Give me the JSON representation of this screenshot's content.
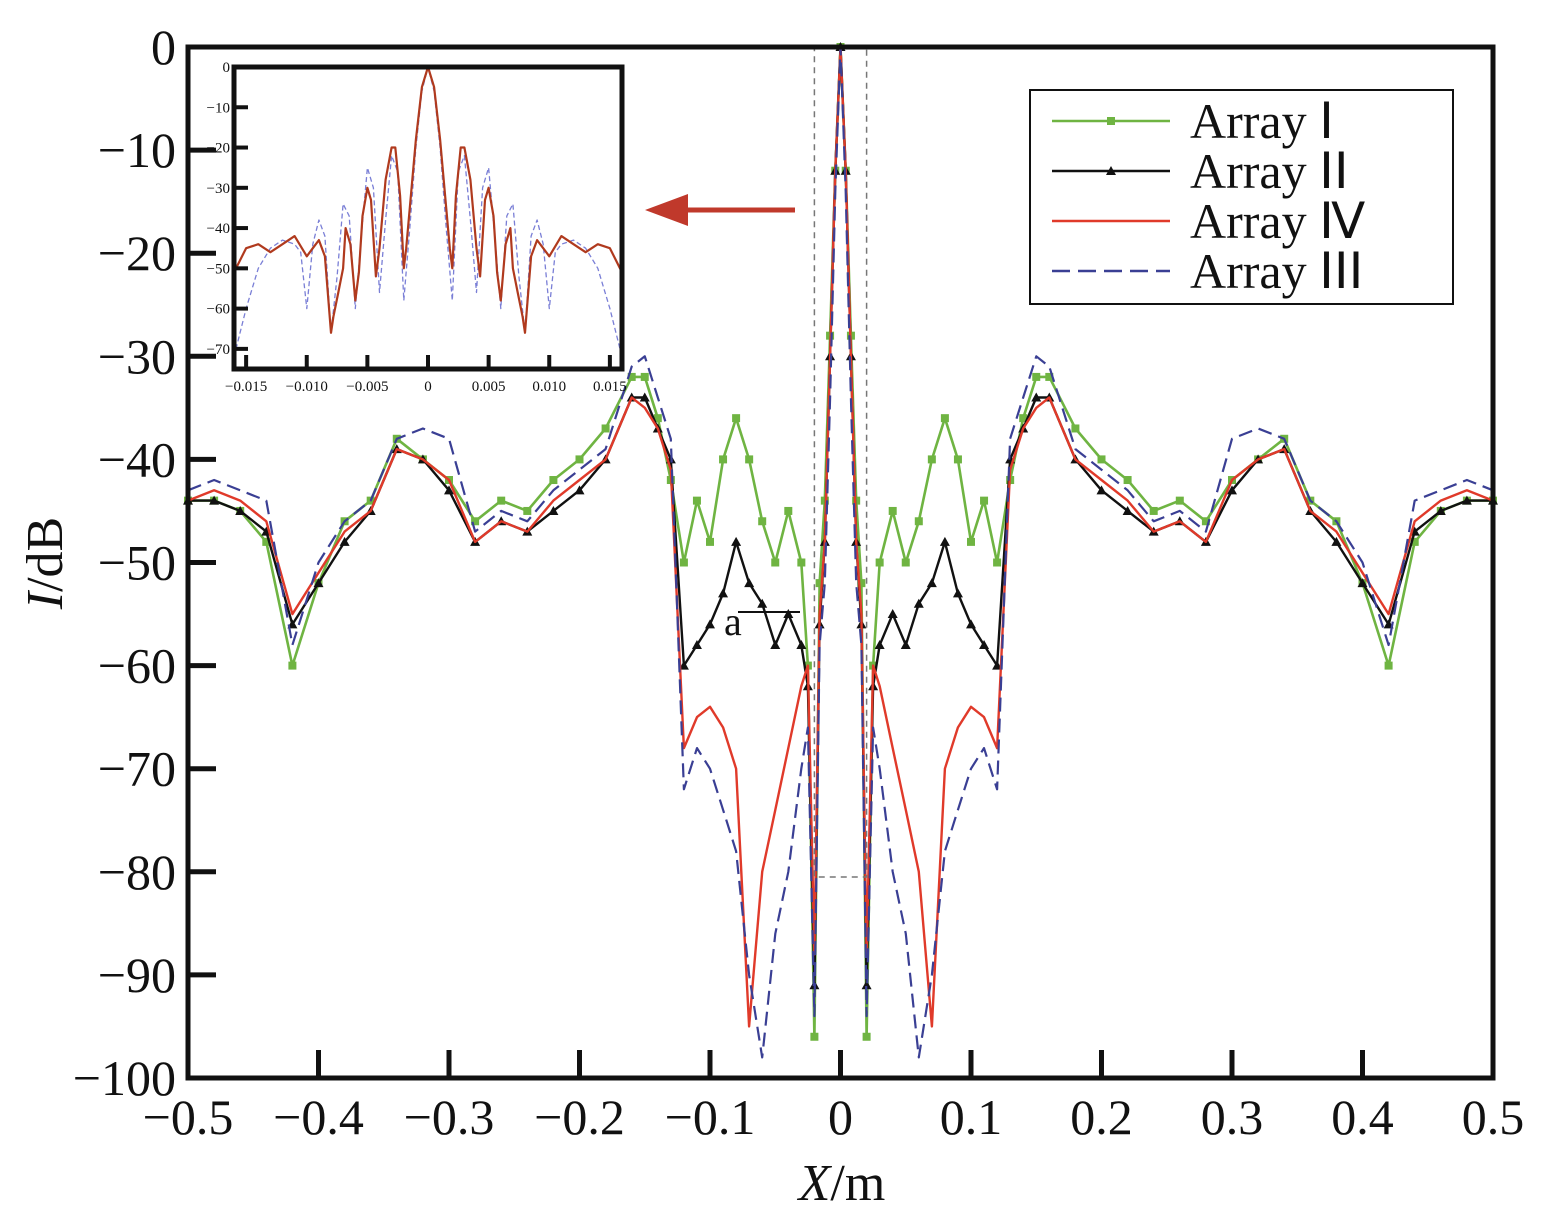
{
  "chart_data": [
    {
      "type": "line",
      "xlabel_italic": "X",
      "xlabel_unit": "/m",
      "ylabel_italic": "I",
      "ylabel_unit": "/dB",
      "xlim": [
        -0.5,
        0.5
      ],
      "ylim": [
        -100,
        0
      ],
      "xticks": [
        -0.5,
        -0.4,
        -0.3,
        -0.2,
        -0.1,
        0,
        0.1,
        0.2,
        0.3,
        0.4,
        0.5
      ],
      "xtick_labels": [
        "−0.5",
        "−0.4",
        "−0.3",
        "−0.2",
        "−0.1",
        "0",
        "0.1",
        "0.2",
        "0.3",
        "0.4",
        "0.5"
      ],
      "yticks": [
        0,
        -10,
        -20,
        -30,
        -40,
        -50,
        -60,
        -70,
        -80,
        -90,
        -100
      ],
      "ytick_labels": [
        "0",
        "−10",
        "−20",
        "−30",
        "−40",
        "−50",
        "−60",
        "−70",
        "−80",
        "−90",
        "−100"
      ],
      "legend_position": "top-right",
      "grid": false,
      "annotation": "a",
      "zoom_box": {
        "x": [
          -0.02,
          0.02
        ],
        "y": [
          -80.5,
          0
        ]
      },
      "series": [
        {
          "name": "Array Ⅰ",
          "color": "#6fb442",
          "style": "solid-square-markers",
          "x": [
            0,
            0.004,
            0.008,
            0.012,
            0.016,
            0.02,
            0.025,
            0.03,
            0.04,
            0.05,
            0.06,
            0.07,
            0.08,
            0.09,
            0.1,
            0.11,
            0.12,
            0.13,
            0.14,
            0.15,
            0.16,
            0.18,
            0.2,
            0.22,
            0.24,
            0.26,
            0.28,
            0.3,
            0.32,
            0.34,
            0.36,
            0.38,
            0.4,
            0.42,
            0.44,
            0.46,
            0.48,
            0.5
          ],
          "y": [
            0,
            -12,
            -28,
            -44,
            -52,
            -96,
            -60,
            -50,
            -45,
            -50,
            -46,
            -40,
            -36,
            -40,
            -48,
            -44,
            -50,
            -42,
            -36,
            -32,
            -32,
            -37,
            -40,
            -42,
            -45,
            -44,
            -46,
            -42,
            -40,
            -38,
            -44,
            -46,
            -52,
            -60,
            -48,
            -45,
            -44,
            -44
          ]
        },
        {
          "name": "Array ⅠⅠ",
          "color": "#111111",
          "style": "solid-triangle-markers",
          "x": [
            0,
            0.004,
            0.008,
            0.012,
            0.016,
            0.02,
            0.025,
            0.03,
            0.04,
            0.05,
            0.06,
            0.07,
            0.08,
            0.09,
            0.1,
            0.11,
            0.12,
            0.13,
            0.14,
            0.15,
            0.16,
            0.18,
            0.2,
            0.22,
            0.24,
            0.26,
            0.28,
            0.3,
            0.32,
            0.34,
            0.36,
            0.38,
            0.4,
            0.42,
            0.44,
            0.46,
            0.48,
            0.5
          ],
          "y": [
            0,
            -12,
            -30,
            -48,
            -56,
            -91,
            -62,
            -58,
            -55,
            -58,
            -54,
            -52,
            -48,
            -53,
            -56,
            -58,
            -60,
            -40,
            -37,
            -34,
            -34,
            -40,
            -43,
            -45,
            -47,
            -46,
            -48,
            -43,
            -40,
            -39,
            -45,
            -48,
            -52,
            -56,
            -47,
            -45,
            -44,
            -44
          ]
        },
        {
          "name": "Array Ⅳ",
          "color": "#e03a2a",
          "style": "solid",
          "x": [
            0,
            0.004,
            0.008,
            0.012,
            0.016,
            0.02,
            0.025,
            0.03,
            0.04,
            0.05,
            0.06,
            0.07,
            0.08,
            0.09,
            0.1,
            0.11,
            0.12,
            0.13,
            0.14,
            0.15,
            0.16,
            0.18,
            0.2,
            0.22,
            0.24,
            0.26,
            0.28,
            0.3,
            0.32,
            0.34,
            0.36,
            0.38,
            0.4,
            0.42,
            0.44,
            0.46,
            0.48,
            0.5
          ],
          "y": [
            0,
            -12,
            -30,
            -48,
            -55,
            -88,
            -60,
            -62,
            -68,
            -74,
            -80,
            -95,
            -70,
            -66,
            -64,
            -65,
            -68,
            -41,
            -37,
            -35,
            -34,
            -40,
            -42,
            -44,
            -47,
            -46,
            -48,
            -42,
            -40,
            -39,
            -45,
            -47,
            -51,
            -55,
            -46,
            -44,
            -43,
            -44
          ]
        },
        {
          "name": "Array ⅠⅠⅠ",
          "color": "#3a3f94",
          "style": "dashed",
          "x": [
            0,
            0.004,
            0.008,
            0.012,
            0.016,
            0.02,
            0.025,
            0.03,
            0.04,
            0.05,
            0.06,
            0.07,
            0.08,
            0.09,
            0.1,
            0.11,
            0.12,
            0.13,
            0.14,
            0.15,
            0.16,
            0.18,
            0.2,
            0.22,
            0.24,
            0.26,
            0.28,
            0.3,
            0.32,
            0.34,
            0.36,
            0.38,
            0.4,
            0.42,
            0.44,
            0.46,
            0.48,
            0.5
          ],
          "y": [
            0,
            -14,
            -34,
            -52,
            -58,
            -94,
            -66,
            -70,
            -80,
            -86,
            -98,
            -90,
            -78,
            -74,
            -70,
            -68,
            -72,
            -38,
            -34,
            -30,
            -31,
            -39,
            -41,
            -43,
            -46,
            -45,
            -47,
            -38,
            -37,
            -38,
            -44,
            -46,
            -50,
            -58,
            -44,
            -43,
            -42,
            -43
          ]
        }
      ]
    },
    {
      "type": "line",
      "role": "inset-zoom",
      "xlim": [
        -0.016,
        0.016
      ],
      "ylim": [
        -75,
        0
      ],
      "xticks": [
        -0.015,
        -0.01,
        -0.005,
        0,
        0.005,
        0.01,
        0.015
      ],
      "xtick_labels": [
        "−0.015",
        "−0.010",
        "−0.005",
        "0",
        "0.005",
        "0.010",
        "0.015"
      ],
      "yticks": [
        0,
        -10,
        -20,
        -30,
        -40,
        -50,
        -60,
        -70
      ],
      "ytick_labels": [
        "0",
        "−10",
        "−20",
        "−30",
        "−40",
        "−50",
        "−60",
        "−70"
      ],
      "series": [
        {
          "name": "Array Ⅰ, Ⅱ, Ⅳ",
          "color": "#b03a1e",
          "style": "solid",
          "x": [
            0,
            0.0005,
            0.001,
            0.0015,
            0.0018,
            0.002,
            0.0023,
            0.0027,
            0.003,
            0.0035,
            0.004,
            0.0043,
            0.0047,
            0.005,
            0.0054,
            0.0057,
            0.006,
            0.0064,
            0.0068,
            0.007,
            0.0074,
            0.0078,
            0.008,
            0.0085,
            0.009,
            0.0095,
            0.01,
            0.011,
            0.012,
            0.013,
            0.014,
            0.015,
            0.016
          ],
          "y": [
            0,
            -5,
            -18,
            -35,
            -45,
            -50,
            -32,
            -20,
            -20,
            -28,
            -45,
            -52,
            -33,
            -30,
            -37,
            -51,
            -58,
            -44,
            -40,
            -50,
            -56,
            -62,
            -66,
            -47,
            -43,
            -45,
            -47,
            -42,
            -44,
            -46,
            -44,
            -45,
            -51
          ]
        },
        {
          "name": "Array ⅠⅠⅠ",
          "color": "#7a7fd6",
          "style": "dashed",
          "x": [
            0,
            0.0005,
            0.001,
            0.0015,
            0.002,
            0.0025,
            0.003,
            0.0035,
            0.004,
            0.0045,
            0.005,
            0.0055,
            0.006,
            0.0065,
            0.007,
            0.0075,
            0.008,
            0.0085,
            0.009,
            0.0095,
            0.01,
            0.0105,
            0.011,
            0.012,
            0.013,
            0.014,
            0.015,
            0.016
          ],
          "y": [
            0,
            -6,
            -20,
            -40,
            -58,
            -26,
            -22,
            -38,
            -56,
            -30,
            -25,
            -42,
            -60,
            -37,
            -34,
            -52,
            -66,
            -42,
            -38,
            -44,
            -60,
            -46,
            -44,
            -43,
            -45,
            -50,
            -60,
            -72
          ]
        }
      ]
    }
  ]
}
